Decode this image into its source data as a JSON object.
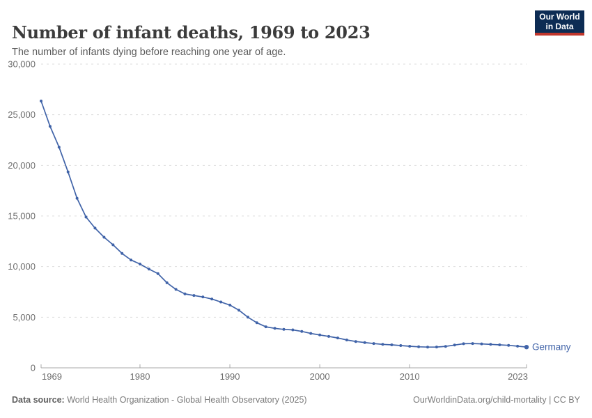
{
  "header": {
    "title": "Number of infant deaths, 1969 to 2023",
    "subtitle": "The number of infants dying before reaching one year of age.",
    "logo": {
      "line1": "Our World",
      "line2": "in Data"
    }
  },
  "footer": {
    "source_label": "Data source:",
    "source_text": "World Health Organization - Global Health Observatory (2025)",
    "link_text": "OurWorldinData.org/child-mortality | CC BY"
  },
  "colors": {
    "line": "#4063a8",
    "entity_label": "#4063a8",
    "gridline": "#dddddd",
    "axis_line": "#a8a8a8",
    "axis_text": "#6e6e6e",
    "logo_bg": "#0d2c54",
    "logo_bar": "#c0362c"
  },
  "chart_data": {
    "type": "line",
    "title": "Number of infant deaths, 1969 to 2023",
    "subtitle": "The number of infants dying before reaching one year of age.",
    "xlabel": "",
    "ylabel": "",
    "grid": "horizontal-dashed",
    "legend_position": "end-of-line-label",
    "ylim": [
      0,
      30000
    ],
    "yticks": [
      0,
      5000,
      10000,
      15000,
      20000,
      25000,
      30000
    ],
    "ytick_labels": [
      "0",
      "5,000",
      "10,000",
      "15,000",
      "20,000",
      "25,000",
      "30,000"
    ],
    "xticks": [
      1969,
      1980,
      1990,
      2000,
      2010,
      2023
    ],
    "xtick_labels": [
      "1969",
      "1980",
      "1990",
      "2000",
      "2010",
      "2023"
    ],
    "x": [
      1969,
      1970,
      1971,
      1972,
      1973,
      1974,
      1975,
      1976,
      1977,
      1978,
      1979,
      1980,
      1981,
      1982,
      1983,
      1984,
      1985,
      1986,
      1987,
      1988,
      1989,
      1990,
      1991,
      1992,
      1993,
      1994,
      1995,
      1996,
      1997,
      1998,
      1999,
      2000,
      2001,
      2002,
      2003,
      2004,
      2005,
      2006,
      2007,
      2008,
      2009,
      2010,
      2011,
      2012,
      2013,
      2014,
      2015,
      2016,
      2017,
      2018,
      2019,
      2020,
      2021,
      2022,
      2023
    ],
    "series": [
      {
        "name": "Germany",
        "values": [
          26350,
          23850,
          21800,
          19350,
          16750,
          14900,
          13800,
          12900,
          12150,
          11300,
          10650,
          10250,
          9750,
          9300,
          8400,
          7750,
          7300,
          7150,
          7000,
          6800,
          6500,
          6200,
          5700,
          5000,
          4450,
          4050,
          3900,
          3800,
          3750,
          3600,
          3400,
          3250,
          3100,
          2950,
          2750,
          2600,
          2500,
          2400,
          2320,
          2270,
          2200,
          2130,
          2080,
          2050,
          2060,
          2120,
          2250,
          2380,
          2400,
          2370,
          2320,
          2270,
          2220,
          2140,
          2050
        ]
      }
    ]
  }
}
